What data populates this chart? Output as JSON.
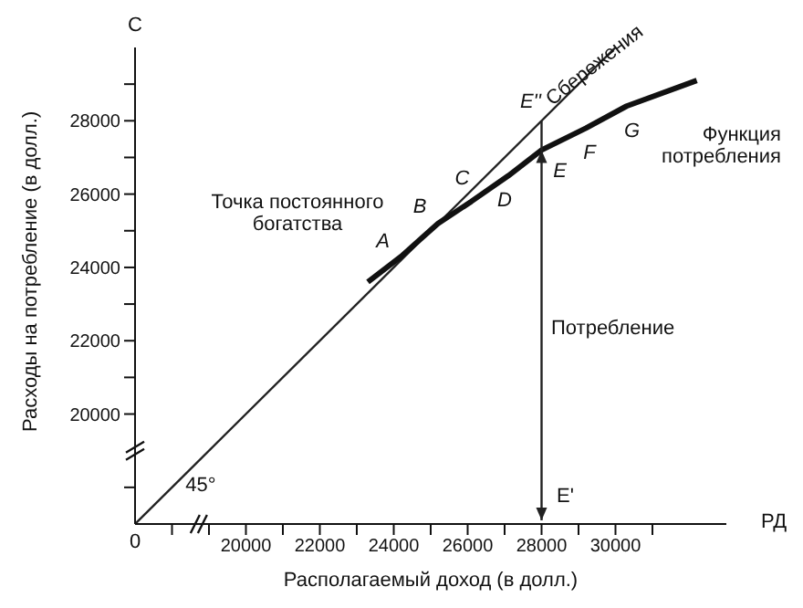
{
  "chart_data": {
    "type": "line",
    "xlabel": "Располагаемый доход (в долл.)",
    "ylabel": "Расходы на потребление (в долл.)",
    "xlim": [
      17000,
      33000
    ],
    "ylim": [
      17000,
      30000
    ],
    "xticks": [
      {
        "value": 18000,
        "label": null
      },
      {
        "value": 19000,
        "label": null
      },
      20000,
      {
        "value": 21000,
        "label": null
      },
      22000,
      {
        "value": 23000,
        "label": null
      },
      24000,
      {
        "value": 25000,
        "label": null
      },
      26000,
      {
        "value": 27000,
        "label": null
      },
      28000,
      {
        "value": 29000,
        "label": null
      },
      30000,
      {
        "value": 31000,
        "label": null
      }
    ],
    "yticks": [
      {
        "value": 18000,
        "label": null
      },
      20000,
      {
        "value": 21000,
        "label": null
      },
      22000,
      {
        "value": 23000,
        "label": null
      },
      24000,
      {
        "value": 25000,
        "label": null
      },
      26000,
      {
        "value": 27000,
        "label": null
      },
      28000,
      {
        "value": 29000,
        "label": null
      }
    ],
    "series": [
      {
        "color": "#222222",
        "x": [
          17000,
          30000
        ],
        "values": [
          17000,
          30000
        ]
      },
      {
        "color": "#111111",
        "x": [
          23300,
          24200,
          25200,
          26100,
          27100,
          28000,
          29200,
          30300,
          32200
        ],
        "values": [
          23600,
          24300,
          25200,
          25800,
          26500,
          27200,
          27800,
          28400,
          29100
        ]
      }
    ],
    "annotations": [
      {
        "text": "A",
        "x": 24200,
        "y": 24300
      },
      {
        "text": "B",
        "x": 25200,
        "y": 25200
      },
      {
        "text": "C",
        "x": 26100,
        "y": 25800
      },
      {
        "text": "D",
        "x": 27100,
        "y": 26500
      },
      {
        "text": "E",
        "x": 28000,
        "y": 27200
      },
      {
        "text": "F",
        "x": 29200,
        "y": 27800
      },
      {
        "text": "G",
        "x": 30300,
        "y": 28400
      },
      {
        "text": "E''",
        "x": 28000,
        "y": 28000
      },
      "E'",
      "Точка постоянного\nбогатства",
      "Функция\nпотребления",
      "Потребление",
      "Сбережения",
      "45°",
      "C",
      "РД",
      "0"
    ],
    "marker": "none",
    "line_style": "solid"
  }
}
